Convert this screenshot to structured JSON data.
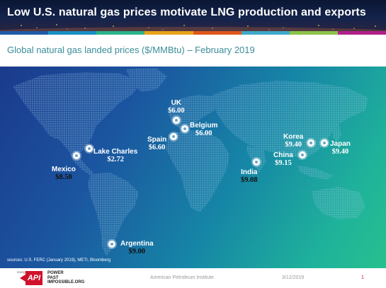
{
  "slide": {
    "title": "Low U.S. natural gas prices motivate LNG production and exports",
    "subtitle": "Global natural gas landed prices ($/MMBtu) – February 2019",
    "source": "sources: U.S. FERC (January 2019), METI, Bloomberg"
  },
  "colors": {
    "header_bg": "#0c1a3a",
    "subtitle": "#3a8d9a",
    "bar": [
      "#1e5aa8",
      "#1a8fc4",
      "#2bb38b",
      "#e8a21a",
      "#e0561c",
      "#3fa9c9",
      "#8bc34a",
      "#b0218a"
    ],
    "map_from": "#1b3a8c",
    "map_to": "#27c08f",
    "land": "#5c8fc9"
  },
  "locations": [
    {
      "name": "Mexico",
      "price": "$8.50"
    },
    {
      "name": "Lake Charles",
      "price": "$2.72"
    },
    {
      "name": "UK",
      "price": "$6.00"
    },
    {
      "name": "Belgium",
      "price": "$6.00"
    },
    {
      "name": "Spain",
      "price": "$6.60"
    },
    {
      "name": "Korea",
      "price": "$9.40"
    },
    {
      "name": "Japan",
      "price": "$9.40"
    },
    {
      "name": "China",
      "price": "$9.15"
    },
    {
      "name": "India",
      "price": "$9.08"
    },
    {
      "name": "Argentina",
      "price": "$9.00"
    }
  ],
  "footer": {
    "energy_label": "energy",
    "logo": "API",
    "tagline": [
      "POWER",
      "PAST",
      "IMPOSSIBLE.ORG"
    ],
    "organization": "American Petroleum Institute",
    "date": "3/12/2019",
    "page": "1"
  }
}
